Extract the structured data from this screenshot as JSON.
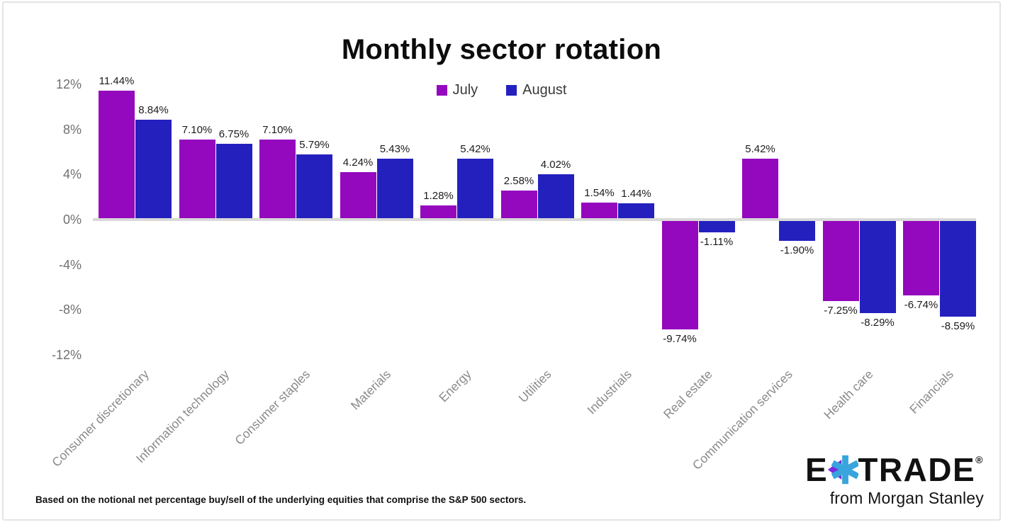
{
  "page": {
    "background": "#ffffff",
    "card_border_color": "#e4e4e4"
  },
  "chart_data": {
    "type": "bar",
    "title": "Monthly sector rotation",
    "categories": [
      "Consumer discretionary",
      "Information technology",
      "Consumer staples",
      "Materials",
      "Energy",
      "Utilities",
      "Industrials",
      "Real estate",
      "Communication services",
      "Health care",
      "Financials"
    ],
    "series": [
      {
        "name": "July",
        "color": "#9408BE",
        "values": [
          11.44,
          7.1,
          7.1,
          4.24,
          1.28,
          2.58,
          1.54,
          -9.74,
          5.42,
          -7.25,
          -6.74
        ]
      },
      {
        "name": "August",
        "color": "#2420BE",
        "values": [
          8.84,
          6.75,
          5.79,
          5.43,
          5.42,
          4.02,
          1.44,
          -1.11,
          -1.9,
          -8.29,
          -8.59
        ]
      }
    ],
    "y_ticks": [
      {
        "label": "12%",
        "value": 12
      },
      {
        "label": "8%",
        "value": 8
      },
      {
        "label": "4%",
        "value": 4
      },
      {
        "label": "0%",
        "value": 0
      },
      {
        "label": "-4%",
        "value": -4
      },
      {
        "label": "-8%",
        "value": -8
      },
      {
        "label": "-12%",
        "value": -12
      }
    ],
    "ylim": [
      -12,
      12
    ],
    "grid": false,
    "legend_position": "top-center",
    "data_label_decimals": 2,
    "data_label_suffix": "%",
    "axis_line_color": "#d9d9d9",
    "tick_label_color": "#6f6f6f",
    "category_label_color": "#8a8a8a",
    "data_label_color": "#1c1c1c"
  },
  "footnote": "Based on the notional net percentage buy/sell of the underlying equities that comprise the S&P 500 sectors.",
  "logo": {
    "brand_left": "E",
    "brand_right": "TRADE",
    "registered": "®",
    "tagline": "from Morgan Stanley",
    "star_purple": "#7B2BE2",
    "star_blue": "#38A5DD"
  }
}
